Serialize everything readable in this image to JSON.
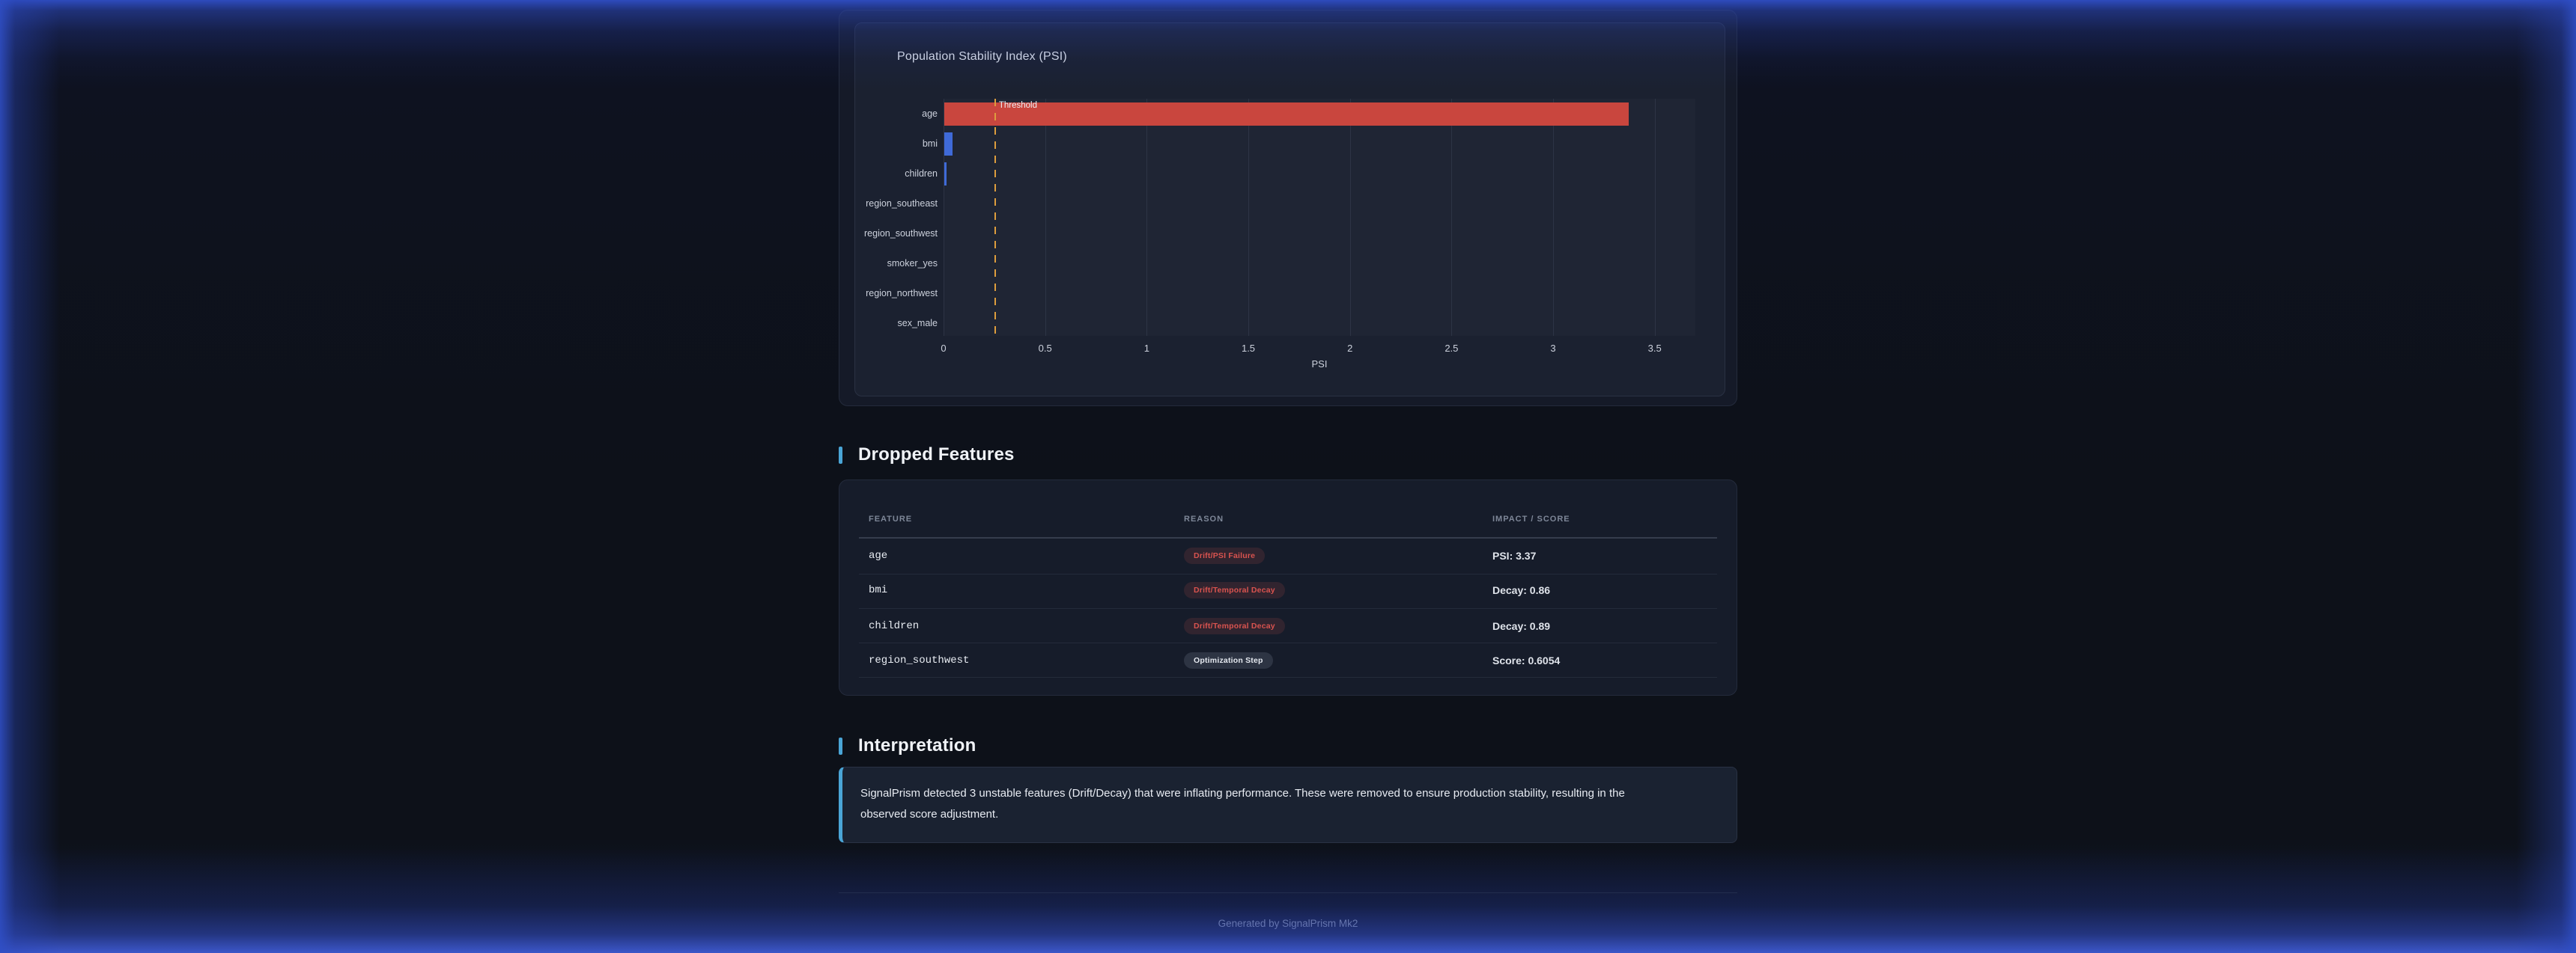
{
  "colors": {
    "accent_cyan": "#4aa5d6",
    "danger_red": "#d9534f",
    "bar_red": "#c9463e",
    "bar_blue": "#3f6ad8",
    "threshold_orange": "#dd9d3d",
    "glow_blue": "#2f4ec5"
  },
  "chart_data": {
    "type": "bar",
    "orientation": "horizontal",
    "title": "Population Stability Index (PSI)",
    "xlabel": "PSI",
    "categories": [
      "age",
      "bmi",
      "children",
      "region_southeast",
      "region_southwest",
      "smoker_yes",
      "region_northwest",
      "sex_male"
    ],
    "values": [
      3.37,
      0.04,
      0.01,
      0,
      0,
      0,
      0,
      0
    ],
    "bar_colors": [
      "#c9463e",
      "#3f6ad8",
      "#3f6ad8",
      "#3f6ad8",
      "#3f6ad8",
      "#3f6ad8",
      "#3f6ad8",
      "#3f6ad8"
    ],
    "xticks": [
      0,
      0.5,
      1,
      1.5,
      2,
      2.5,
      3,
      3.5
    ],
    "xtick_labels": [
      "0",
      "0.5",
      "1",
      "1.5",
      "2",
      "2.5",
      "3",
      "3.5"
    ],
    "xlim": [
      0,
      3.7
    ],
    "grid": true,
    "legend": false,
    "threshold": {
      "value": 0.25,
      "label": "Threshold",
      "color": "#dd9d3d"
    }
  },
  "dropped_features": {
    "heading": "Dropped Features",
    "columns": [
      "FEATURE",
      "REASON",
      "IMPACT / SCORE"
    ],
    "rows": [
      {
        "feature": "age",
        "reason": "Drift/PSI Failure",
        "reason_type": "danger",
        "impact": "PSI: 3.37"
      },
      {
        "feature": "bmi",
        "reason": "Drift/Temporal Decay",
        "reason_type": "danger",
        "impact": "Decay: 0.86"
      },
      {
        "feature": "children",
        "reason": "Drift/Temporal Decay",
        "reason_type": "danger",
        "impact": "Decay: 0.89"
      },
      {
        "feature": "region_southwest",
        "reason": "Optimization Step",
        "reason_type": "neutral",
        "impact": "Score: 0.6054"
      }
    ]
  },
  "interpretation": {
    "heading": "Interpretation",
    "text": "SignalPrism detected 3 unstable features (Drift/Decay) that were inflating performance. These were removed to ensure production stability, resulting in the observed score adjustment."
  },
  "footer": {
    "text": "Generated by SignalPrism Mk2"
  }
}
